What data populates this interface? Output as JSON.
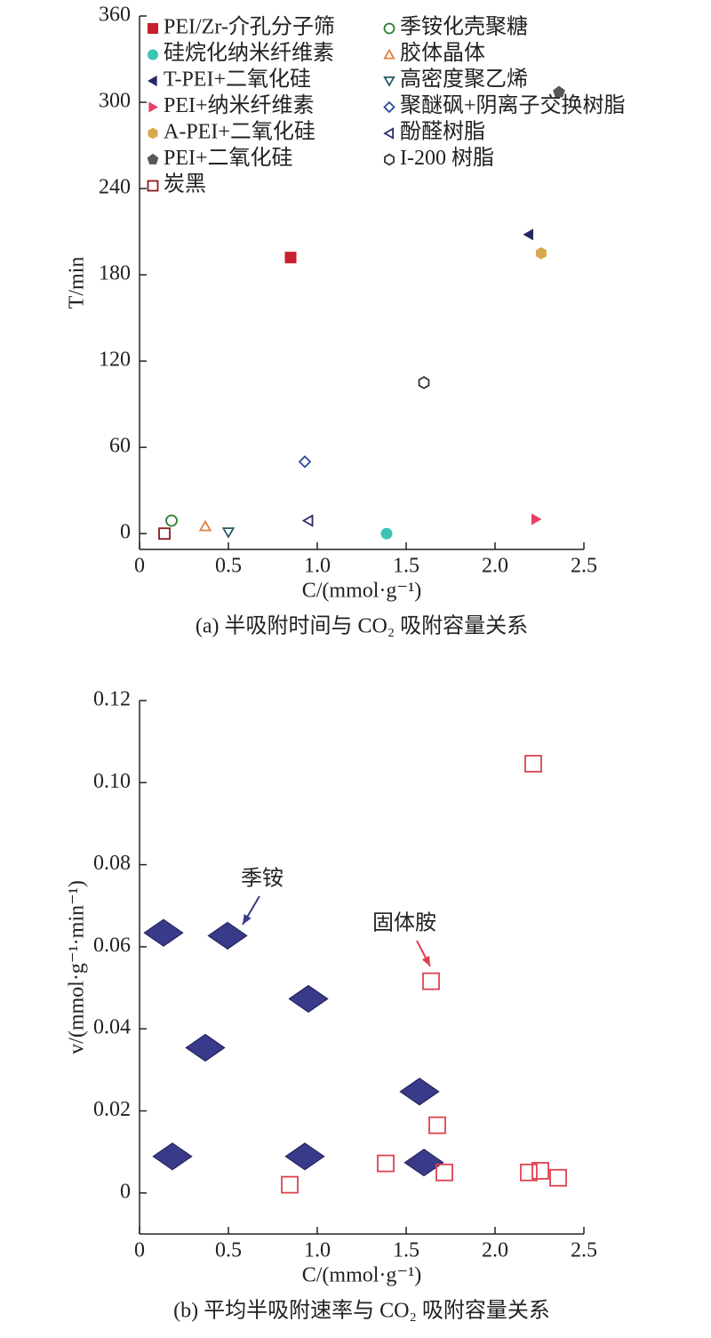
{
  "chart_data": [
    {
      "type": "scatter",
      "xlabel": "C/(mmol·g⁻¹)",
      "ylabel": "T/min",
      "caption": "(a) 半吸附时间与 CO₂ 吸附容量关系",
      "xlim": [
        0,
        2.5
      ],
      "ylim": [
        -11,
        360
      ],
      "xticks": [
        0,
        0.5,
        {
          "value": 1,
          "label": "1.0"
        },
        1.5,
        {
          "value": 2,
          "label": "2.0"
        },
        2.5
      ],
      "yticks": [
        0,
        60,
        120,
        180,
        240,
        300,
        360
      ],
      "legend": "upper left",
      "legend_columns": 2,
      "series": [
        {
          "name": "PEI/Zr-介孔分子筛",
          "color": "#c8202e",
          "marker": "s",
          "filled": true,
          "x": [
            0.85
          ],
          "values": [
            192
          ]
        },
        {
          "name": "硅烷化纳米纤维素",
          "color": "#3cc3b3",
          "marker": "o",
          "filled": true,
          "x": [
            1.39
          ],
          "values": [
            0
          ]
        },
        {
          "name": "T-PEI+二氧化硅",
          "color": "#262866",
          "marker": "<",
          "filled": true,
          "x": [
            2.19
          ],
          "values": [
            208
          ]
        },
        {
          "name": "PEI+纳米纤维素",
          "color": "#e8406a",
          "marker": ">",
          "filled": true,
          "x": [
            2.23
          ],
          "values": [
            10
          ]
        },
        {
          "name": "A-PEI+二氧化硅",
          "color": "#d6aa4c",
          "marker": "h",
          "filled": true,
          "x": [
            2.26
          ],
          "values": [
            195
          ]
        },
        {
          "name": "PEI+二氧化硅",
          "color": "#55585c",
          "marker": "p",
          "filled": true,
          "x": [
            2.36
          ],
          "values": [
            307
          ]
        },
        {
          "name": "炭黑",
          "color": "#8b1a1a",
          "marker": "s",
          "filled": false,
          "x": [
            0.14
          ],
          "values": [
            0
          ]
        },
        {
          "name": "季铵化壳聚糖",
          "color": "#2e7d32",
          "marker": "o",
          "filled": false,
          "x": [
            0.18
          ],
          "values": [
            9
          ]
        },
        {
          "name": "胶体晶体",
          "color": "#e08040",
          "marker": "^",
          "filled": false,
          "x": [
            0.37
          ],
          "values": [
            5
          ]
        },
        {
          "name": "高密度聚乙烯",
          "color": "#2a5a6a",
          "marker": "v",
          "filled": false,
          "x": [
            0.5
          ],
          "values": [
            1
          ]
        },
        {
          "name": "聚醚砜+阴离子交换树脂",
          "color": "#2a4a9a",
          "marker": "D",
          "filled": false,
          "x": [
            0.93
          ],
          "values": [
            50
          ]
        },
        {
          "name": "酚醛树脂",
          "color": "#2a2a6a",
          "marker": "<",
          "filled": false,
          "x": [
            0.95
          ],
          "values": [
            9
          ]
        },
        {
          "name": "I-200 树脂",
          "color": "#333333",
          "marker": "h",
          "filled": false,
          "x": [
            1.6
          ],
          "values": [
            105
          ]
        }
      ]
    },
    {
      "type": "scatter",
      "xlabel": "C/(mmol·g⁻¹)",
      "ylabel": "v/(mmol·g⁻¹·min⁻¹)",
      "caption": "(b) 平均半吸附速率与 CO₂ 吸附容量关系",
      "xlim": [
        0,
        2.5
      ],
      "ylim": [
        -0.01,
        0.12
      ],
      "xticks": [
        0,
        0.5,
        {
          "value": 1,
          "label": "1.0"
        },
        1.5,
        {
          "value": 2,
          "label": "2.0"
        },
        2.5
      ],
      "yticks": [
        0,
        0.02,
        0.04,
        0.06,
        0.08,
        {
          "value": 0.1,
          "label": "0.10"
        },
        0.12
      ],
      "series": [
        {
          "name": "季铵",
          "color": "#3a3a8a",
          "marker": "D",
          "filled": true,
          "x": [
            0.135,
            0.495,
            0.95,
            0.37,
            1.575,
            0.185,
            0.93,
            1.6
          ],
          "values": [
            0.0634,
            0.0627,
            0.0473,
            0.0354,
            0.0247,
            0.0089,
            0.0089,
            0.0074
          ]
        },
        {
          "name": "固体胺",
          "color": "#e04050",
          "marker": "s",
          "filled": false,
          "x": [
            2.215,
            1.64,
            1.675,
            1.385,
            0.845,
            1.715,
            2.19,
            2.255,
            2.355
          ],
          "values": [
            0.1046,
            0.0516,
            0.0165,
            0.0072,
            0.002,
            0.005,
            0.005,
            0.0054,
            0.0037
          ]
        }
      ]
    }
  ]
}
